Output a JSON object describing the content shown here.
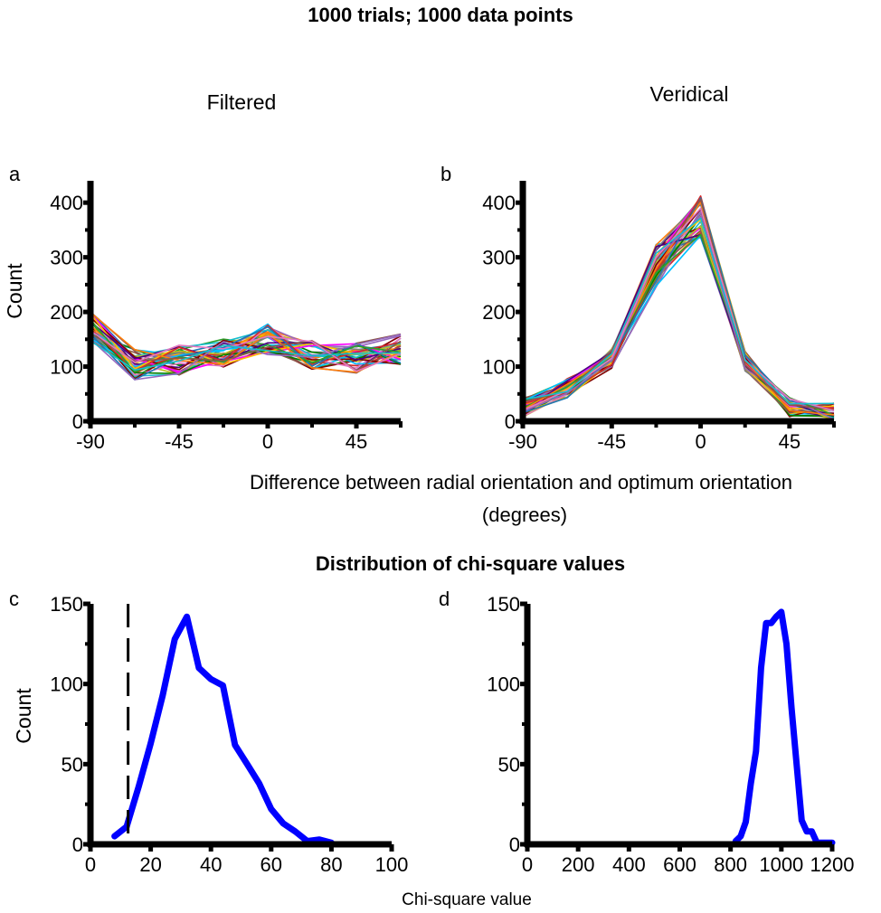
{
  "figure": {
    "title": "1000 trials; 1000 data points",
    "top_xlabel_line1": "Difference between radial orientation and optimum orientation",
    "top_xlabel_line2": "(degrees)",
    "bottom_title": "Distribution of chi-square values",
    "bottom_xlabel": "Chi-square value"
  },
  "colors": {
    "axis": "#000000",
    "chi_line": "#0000ff",
    "palette": [
      "#d62728",
      "#1f77b4",
      "#2ca02c",
      "#ff7f0e",
      "#9467bd",
      "#8c564b",
      "#e377c2",
      "#17becf",
      "#bcbd22",
      "#7f7f7f",
      "#00c0ff",
      "#ff00ff",
      "#800000",
      "#008000",
      "#ffbf00",
      "#4b0082"
    ]
  },
  "chart_data": [
    {
      "id": "a",
      "type": "line",
      "panel_label": "a",
      "subtitle": "Filtered",
      "ylabel": "Count",
      "xlabel": "",
      "x": [
        -90,
        -67.5,
        -45,
        -22.5,
        0,
        22.5,
        45,
        67.5
      ],
      "xlim": [
        -90,
        67.5
      ],
      "ylim": [
        0,
        440
      ],
      "xticks": [
        -90,
        -45,
        0,
        45
      ],
      "xtick_labels": [
        "-90",
        "-45",
        "0",
        "45"
      ],
      "yticks": [
        0,
        100,
        200,
        300,
        400
      ],
      "ytick_labels": [
        "0",
        "100",
        "200",
        "300",
        "400"
      ],
      "n_series": 40,
      "mean": [
        172,
        104,
        112,
        126,
        150,
        120,
        116,
        132
      ],
      "spread": 28
    },
    {
      "id": "b",
      "type": "line",
      "panel_label": "b",
      "subtitle": "Veridical",
      "ylabel": "",
      "xlabel": "",
      "x": [
        -90,
        -67.5,
        -45,
        -22.5,
        0,
        22.5,
        45,
        67.5
      ],
      "xlim": [
        -90,
        67.5
      ],
      "ylim": [
        0,
        440
      ],
      "xticks": [
        -90,
        -45,
        0,
        45
      ],
      "xtick_labels": [
        "-90",
        "-45",
        "0",
        "45"
      ],
      "yticks": [
        0,
        100,
        200,
        300,
        400
      ],
      "ytick_labels": [
        "0",
        "100",
        "200",
        "300",
        "400"
      ],
      "n_series": 40,
      "mean": [
        25,
        60,
        115,
        285,
        375,
        110,
        25,
        18
      ],
      "spread": 18
    },
    {
      "id": "c",
      "type": "line",
      "panel_label": "c",
      "subtitle": "",
      "ylabel": "Count",
      "xlabel": "",
      "x": [
        8,
        12,
        16,
        20,
        24,
        28,
        32,
        36,
        40,
        44,
        48,
        52,
        56,
        60,
        64,
        68,
        72,
        76,
        80
      ],
      "y": [
        5,
        11,
        36,
        63,
        93,
        128,
        142,
        110,
        103,
        99,
        62,
        50,
        38,
        22,
        13,
        8,
        2,
        3,
        1
      ],
      "reference_x": 12.5,
      "xlim": [
        0,
        100
      ],
      "ylim": [
        0,
        150
      ],
      "xticks": [
        0,
        20,
        40,
        60,
        80,
        100
      ],
      "xtick_labels": [
        "0",
        "20",
        "40",
        "60",
        "80",
        "100"
      ],
      "yticks": [
        0,
        50,
        100,
        150
      ],
      "ytick_labels": [
        "0",
        "50",
        "100",
        "150"
      ]
    },
    {
      "id": "d",
      "type": "line",
      "panel_label": "d",
      "subtitle": "",
      "ylabel": "",
      "xlabel": "",
      "x": [
        820,
        840,
        860,
        880,
        900,
        920,
        940,
        960,
        980,
        1000,
        1020,
        1040,
        1060,
        1080,
        1100,
        1120,
        1140,
        1160,
        1180,
        1200
      ],
      "y": [
        2,
        5,
        14,
        38,
        58,
        110,
        138,
        138,
        142,
        145,
        125,
        85,
        50,
        15,
        8,
        8,
        1,
        1,
        1,
        1
      ],
      "reference_x": 0,
      "xlim": [
        0,
        1200
      ],
      "ylim": [
        0,
        150
      ],
      "xticks": [
        0,
        200,
        400,
        600,
        800,
        1000,
        1200
      ],
      "xtick_labels": [
        "0",
        "200",
        "400",
        "600",
        "800",
        "1000",
        "1200"
      ],
      "yticks": [
        0,
        50,
        100,
        150
      ],
      "ytick_labels": [
        "0",
        "50",
        "100",
        "150"
      ]
    }
  ]
}
